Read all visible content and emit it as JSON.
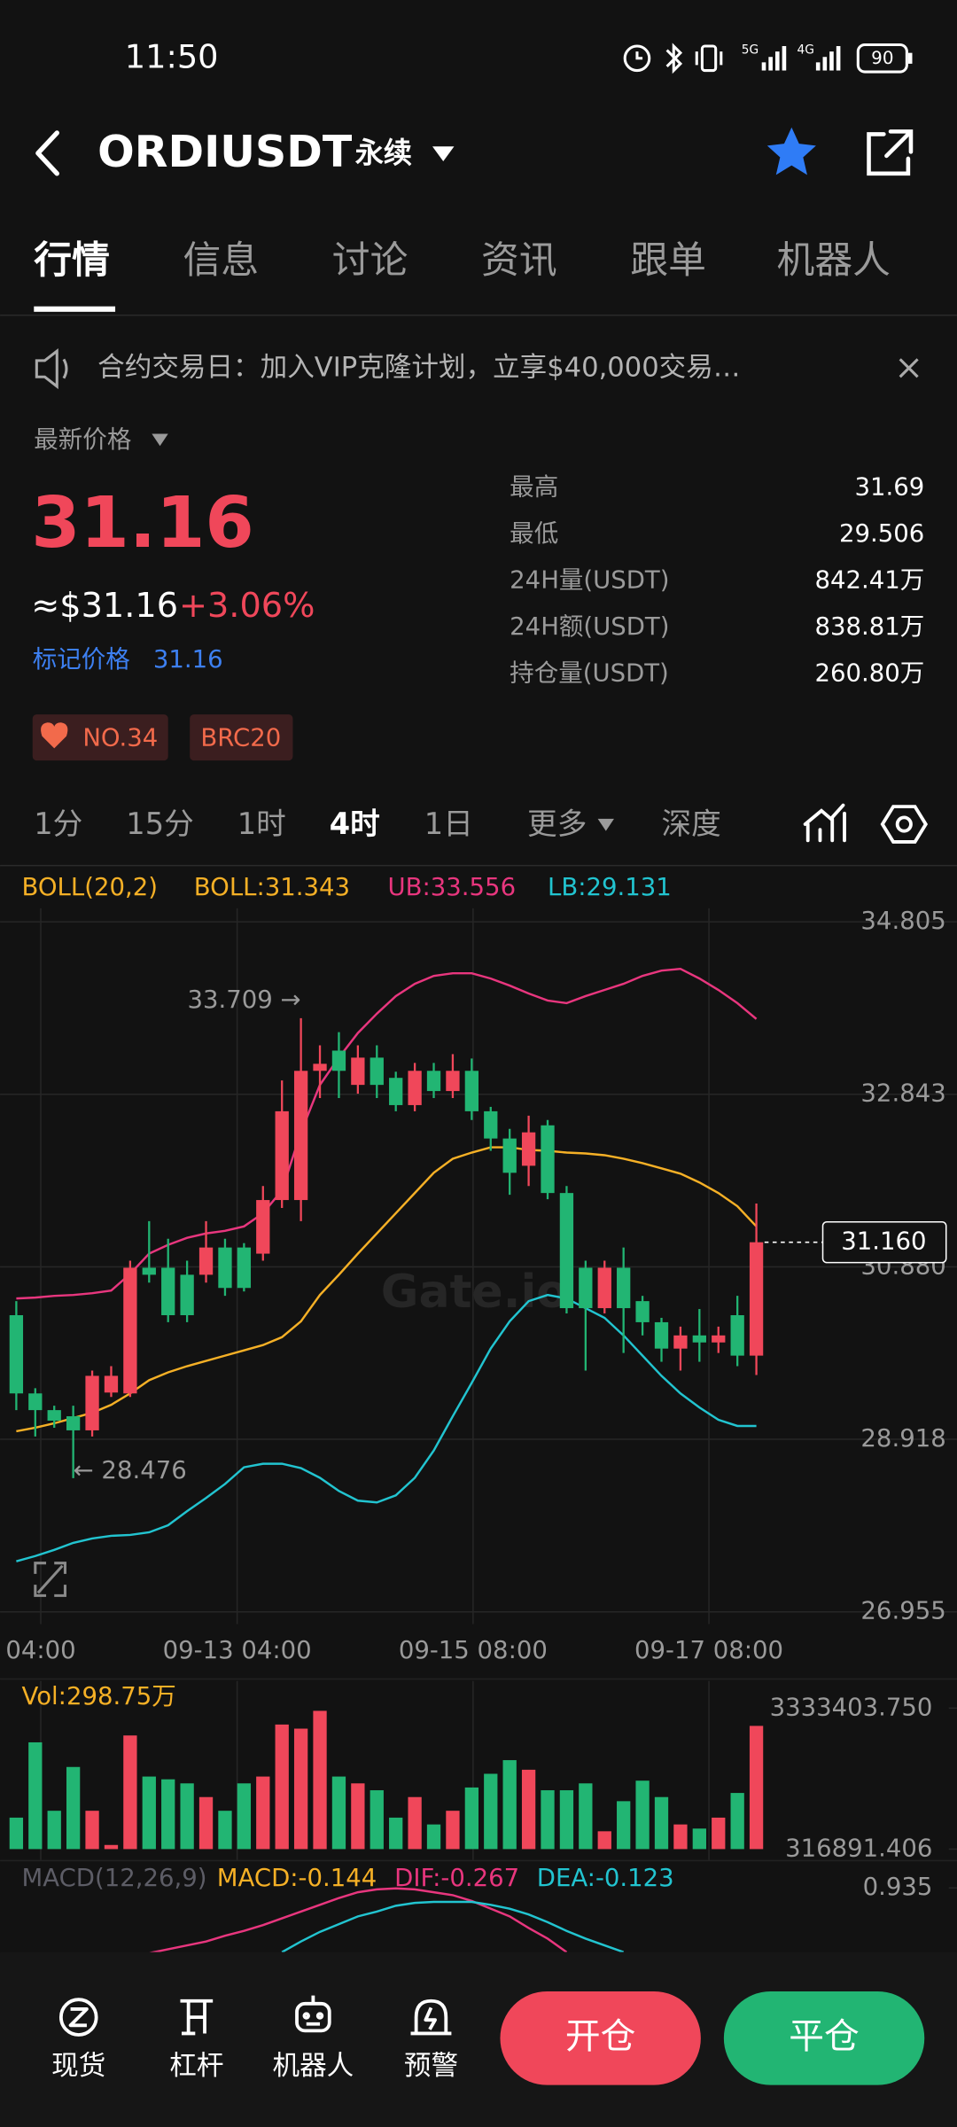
{
  "status_bar": {
    "time": "11:50",
    "network": [
      "5G",
      "4G"
    ],
    "battery": "90"
  },
  "header": {
    "title": "ORDIUSDT",
    "subtitle": "永续"
  },
  "tabs": [
    "行情",
    "信息",
    "讨论",
    "资讯",
    "跟单",
    "机器人"
  ],
  "notice": "合约交易日：加入VIP克隆计划，立享$40,000交易…",
  "price": {
    "label": "最新价格",
    "last": "31.16",
    "usd": "≈$31.16",
    "change": "+3.06%",
    "mark_label": "标记价格",
    "mark_value": "31.16"
  },
  "stats": [
    {
      "label": "最高",
      "value": "31.69"
    },
    {
      "label": "最低",
      "value": "29.506"
    },
    {
      "label": "24H量(USDT)",
      "value": "842.41万"
    },
    {
      "label": "24H额(USDT)",
      "value": "838.81万"
    },
    {
      "label": "持仓量(USDT)",
      "value": "260.80万"
    }
  ],
  "tags": [
    "NO.34",
    "BRC20"
  ],
  "intervals": [
    "1分",
    "15分",
    "1时",
    "4时",
    "1日",
    "更多",
    "深度"
  ],
  "chart_data": [
    {
      "type": "candlestick",
      "open": [
        30.33,
        29.44,
        29.25,
        29.18,
        29.02,
        29.45,
        29.44,
        30.87,
        30.87,
        30.79,
        30.79,
        31.1,
        31.1,
        31.03,
        31.64,
        31.64,
        33.11,
        33.34,
        32.95,
        33.26,
        33.03,
        32.72,
        33.11,
        32.88,
        33.11,
        32.65,
        32.34,
        32.03,
        32.49,
        31.72,
        30.87,
        30.41,
        30.87,
        30.49,
        30.25,
        29.95,
        30.1,
        30.02,
        30.33,
        29.87
      ],
      "high": [
        30.49,
        29.5,
        29.3,
        29.3,
        29.7,
        29.75,
        30.95,
        31.4,
        31.2,
        30.95,
        31.4,
        31.2,
        31.15,
        31.8,
        33.0,
        33.709,
        33.4,
        33.55,
        33.4,
        33.4,
        33.1,
        33.2,
        33.2,
        33.3,
        33.25,
        32.7,
        32.45,
        32.6,
        32.55,
        31.8,
        30.95,
        30.95,
        31.1,
        30.55,
        30.3,
        30.2,
        30.4,
        30.2,
        30.55,
        31.6
      ],
      "low": [
        29.25,
        28.95,
        29.05,
        28.476,
        28.95,
        29.4,
        29.4,
        30.7,
        30.25,
        30.25,
        30.7,
        30.55,
        30.6,
        30.95,
        31.55,
        31.4,
        32.8,
        32.8,
        32.85,
        32.8,
        32.65,
        32.65,
        32.8,
        32.8,
        32.55,
        32.2,
        31.7,
        31.8,
        31.65,
        30.35,
        29.7,
        30.35,
        29.9,
        30.1,
        29.8,
        29.7,
        29.8,
        29.9,
        29.75,
        29.65
      ],
      "close": [
        29.44,
        29.25,
        29.13,
        29.02,
        29.64,
        29.64,
        30.87,
        30.79,
        30.33,
        30.33,
        31.1,
        30.64,
        30.64,
        31.64,
        32.65,
        33.11,
        33.19,
        33.11,
        33.26,
        32.95,
        32.72,
        33.11,
        32.88,
        33.11,
        32.65,
        32.34,
        31.95,
        32.41,
        31.72,
        30.41,
        30.41,
        30.87,
        30.41,
        30.25,
        29.95,
        30.1,
        30.02,
        30.1,
        29.87,
        31.16
      ],
      "up_color": "#f0475a",
      "down_color": "#22b573",
      "bands": [
        {
          "color": "#e8367e",
          "values": [
            30.52,
            30.53,
            30.55,
            30.56,
            30.58,
            30.61,
            30.8,
            31.03,
            31.13,
            31.21,
            31.26,
            31.29,
            31.34,
            31.49,
            31.75,
            32.41,
            32.95,
            33.26,
            33.54,
            33.76,
            33.96,
            34.1,
            34.19,
            34.22,
            34.22,
            34.16,
            34.08,
            33.99,
            33.91,
            33.88,
            33.96,
            34.03,
            34.1,
            34.19,
            34.25,
            34.27,
            34.16,
            34.03,
            33.88,
            33.7
          ]
        },
        {
          "color": "#f5b026",
          "values": [
            29.01,
            29.05,
            29.1,
            29.16,
            29.22,
            29.31,
            29.44,
            29.59,
            29.68,
            29.75,
            29.81,
            29.87,
            29.93,
            29.99,
            30.08,
            30.26,
            30.56,
            30.79,
            31.03,
            31.26,
            31.49,
            31.72,
            31.95,
            32.11,
            32.18,
            32.24,
            32.24,
            32.21,
            32.2,
            32.18,
            32.17,
            32.15,
            32.11,
            32.06,
            32.0,
            31.94,
            31.84,
            31.72,
            31.57,
            31.34
          ]
        },
        {
          "color": "#22c4d0",
          "values": [
            27.53,
            27.59,
            27.66,
            27.74,
            27.79,
            27.82,
            27.83,
            27.86,
            27.94,
            28.1,
            28.25,
            28.41,
            28.6,
            28.64,
            28.64,
            28.59,
            28.48,
            28.33,
            28.22,
            28.2,
            28.28,
            28.48,
            28.79,
            29.18,
            29.56,
            29.95,
            30.26,
            30.49,
            30.56,
            30.52,
            30.41,
            30.3,
            30.1,
            29.87,
            29.64,
            29.44,
            29.28,
            29.14,
            29.07,
            29.07
          ]
        }
      ],
      "xlim": [
        -0.857,
        49.571
      ],
      "xticks": [
        {
          "value": 1.29,
          "label": "04:00"
        },
        {
          "value": 11.64,
          "label": "09-13 04:00"
        },
        {
          "value": 24.07,
          "label": "09-15 08:00"
        },
        {
          "value": 36.5,
          "label": "09-17 08:00"
        }
      ],
      "ylim": [
        26.955,
        34.805
      ],
      "yticks": [
        34.805,
        32.843,
        {
          "value": 30.88,
          "label": "30.880"
        },
        28.918,
        26.955
      ],
      "grid": true,
      "legend": [
        {
          "text": "BOLL(20,2)",
          "color": "#f5b026"
        },
        {
          "text": "BOLL:31.343",
          "color": "#f5b026"
        },
        {
          "text": "UB:33.556",
          "color": "#e8367e"
        },
        {
          "text": "LB:29.131",
          "color": "#22c4d0"
        }
      ],
      "high_label": "33.709 →",
      "low_label": "← 28.476",
      "last_price_label": "31.160",
      "watermark": "Gate.io"
    },
    {
      "type": "bar",
      "values": [
        990000,
        2601000,
        1137000,
        2074000,
        1137000,
        405000,
        2748000,
        1869000,
        1810000,
        1723000,
        1430000,
        1137000,
        1723000,
        1869000,
        2982000,
        2894000,
        3275000,
        1869000,
        1723000,
        1576000,
        990000,
        1430000,
        844000,
        1137000,
        1635000,
        1928000,
        2220000,
        2015000,
        1576000,
        1576000,
        1723000,
        698000,
        1342000,
        1781000,
        1430000,
        844000,
        756000,
        990000,
        1518000,
        2953000
      ],
      "ylim": [
        316891.406,
        3333403.75
      ],
      "yticks": [
        {
          "value": 3333403.75,
          "label": "3333403.750"
        },
        316891.406
      ],
      "legend": {
        "text": "Vol:298.75万",
        "color": "#f5b026"
      }
    },
    {
      "type": "line",
      "series": [
        {
          "color": "#e8367e",
          "values": [
            null,
            null,
            null,
            null,
            null,
            null,
            null,
            0.26,
            0.3,
            0.34,
            0.38,
            0.44,
            0.49,
            0.55,
            0.62,
            0.69,
            0.76,
            0.83,
            0.89,
            0.92,
            0.93,
            0.92,
            0.89,
            0.86,
            0.8,
            0.72,
            0.64,
            0.52,
            0.41,
            0.27,
            null,
            null,
            null,
            null,
            null,
            null,
            null,
            null,
            null,
            null
          ]
        },
        {
          "color": "#22c4d0",
          "values": [
            null,
            null,
            null,
            null,
            null,
            null,
            null,
            null,
            null,
            null,
            null,
            null,
            null,
            null,
            0.27,
            0.38,
            0.48,
            0.56,
            0.64,
            0.69,
            0.75,
            0.78,
            0.79,
            0.79,
            0.79,
            0.76,
            0.72,
            0.66,
            0.58,
            0.49,
            0.41,
            0.34,
            0.27,
            null,
            null,
            null,
            null,
            null,
            null,
            null
          ]
        }
      ],
      "ylim": [
        0.2,
        1.0
      ],
      "yticks": [
        0.935
      ],
      "legend": [
        {
          "text": "MACD(12,26,9)",
          "color": "#5d5d66"
        },
        {
          "text": "MACD:-0.144",
          "color": "#f5b026"
        },
        {
          "text": "DIF:-0.267",
          "color": "#e8367e"
        },
        {
          "text": "DEA:-0.123",
          "color": "#22c4d0"
        }
      ]
    }
  ],
  "nav": [
    "现货",
    "杠杆",
    "机器人",
    "预警"
  ],
  "buttons": [
    "开仓",
    "平仓"
  ]
}
